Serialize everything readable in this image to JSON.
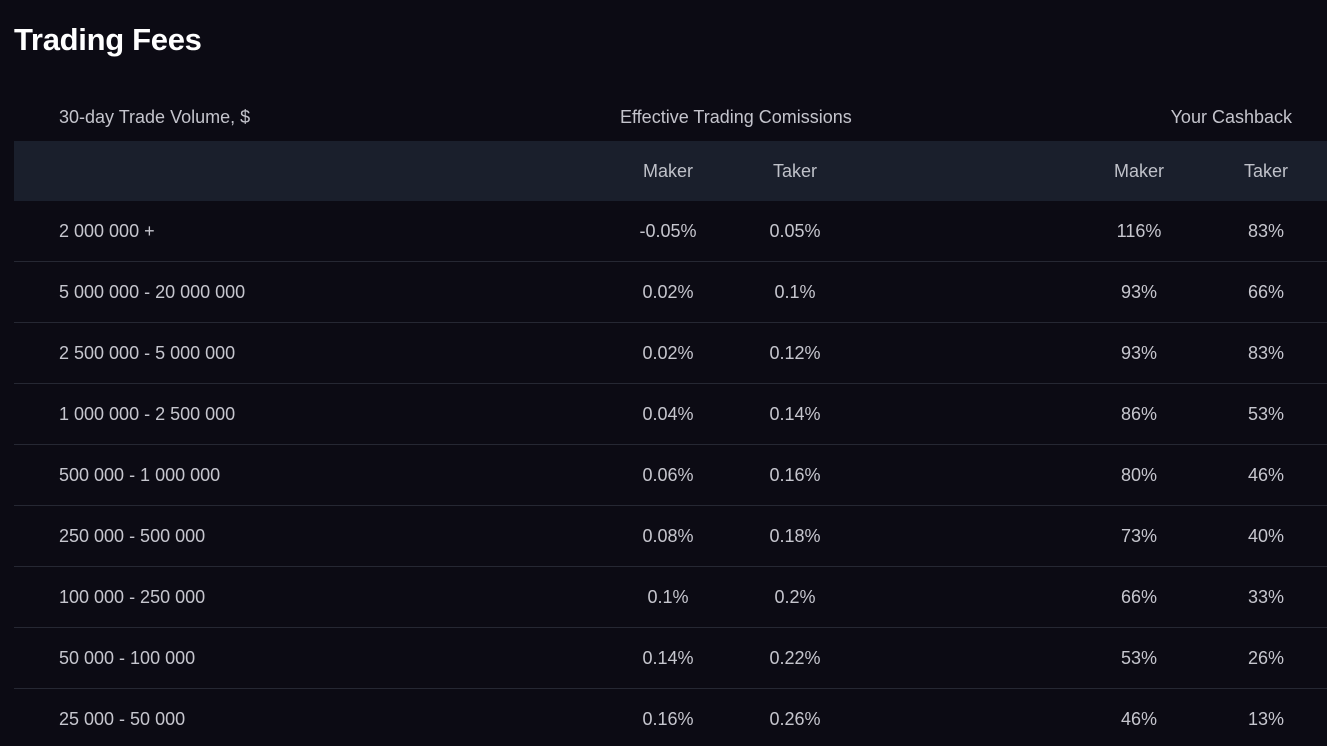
{
  "page": {
    "title": "Trading Fees"
  },
  "table": {
    "group_headers": {
      "volume": "30-day Trade Volume, $",
      "effective": "Effective Trading Comissions",
      "cashback": "Your Cashback"
    },
    "sub_headers": {
      "eff_maker": "Maker",
      "eff_taker": "Taker",
      "cb_maker": "Maker",
      "cb_taker": "Taker"
    },
    "rows": [
      {
        "volume": "2 000 000 +",
        "eff_maker": "-0.05%",
        "eff_taker": "0.05%",
        "cb_maker": "116%",
        "cb_taker": "83%"
      },
      {
        "volume": "5 000 000 - 20 000 000",
        "eff_maker": "0.02%",
        "eff_taker": "0.1%",
        "cb_maker": "93%",
        "cb_taker": "66%"
      },
      {
        "volume": "2 500 000 - 5 000 000",
        "eff_maker": "0.02%",
        "eff_taker": "0.12%",
        "cb_maker": "93%",
        "cb_taker": "83%"
      },
      {
        "volume": "1 000 000 - 2 500 000",
        "eff_maker": "0.04%",
        "eff_taker": "0.14%",
        "cb_maker": "86%",
        "cb_taker": "53%"
      },
      {
        "volume": "500 000 - 1 000 000",
        "eff_maker": "0.06%",
        "eff_taker": "0.16%",
        "cb_maker": "80%",
        "cb_taker": "46%"
      },
      {
        "volume": "250 000 - 500 000",
        "eff_maker": "0.08%",
        "eff_taker": "0.18%",
        "cb_maker": "73%",
        "cb_taker": "40%"
      },
      {
        "volume": "100 000 - 250 000",
        "eff_maker": "0.1%",
        "eff_taker": "0.2%",
        "cb_maker": "66%",
        "cb_taker": "33%"
      },
      {
        "volume": "50 000 - 100 000",
        "eff_maker": "0.14%",
        "eff_taker": "0.22%",
        "cb_maker": "53%",
        "cb_taker": "26%"
      },
      {
        "volume": "25 000 - 50 000",
        "eff_maker": "0.16%",
        "eff_taker": "0.26%",
        "cb_maker": "46%",
        "cb_taker": "13%"
      }
    ]
  }
}
